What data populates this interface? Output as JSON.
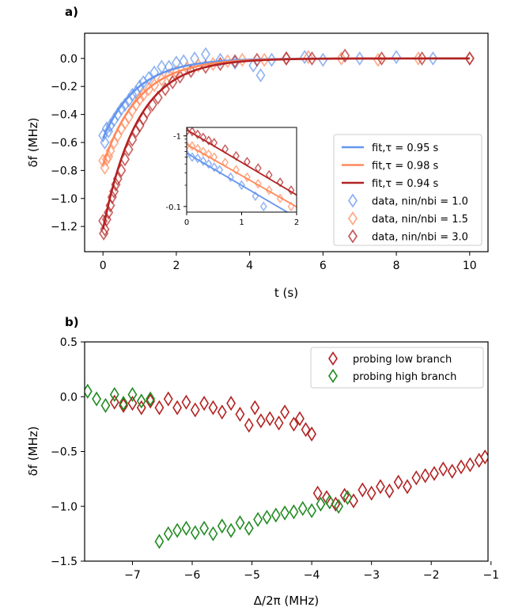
{
  "colors": {
    "blue": "#6495ed",
    "orange": "#ff8a5c",
    "darkred": "#b22222",
    "red": "#b22222",
    "green": "#228b22"
  },
  "chart_data": [
    {
      "panel_label": "a)",
      "type": "scatter",
      "xlabel": "t (s)",
      "ylabel": "δf (MHz)",
      "xlim": [
        -0.5,
        10.5
      ],
      "ylim": [
        -1.38,
        0.18
      ],
      "xticks": [
        0,
        2,
        4,
        6,
        8,
        10
      ],
      "yticks": [
        0.0,
        -0.2,
        -0.4,
        -0.6,
        -0.8,
        -1.0,
        -1.2
      ],
      "xtick_labels": [
        "0",
        "2",
        "4",
        "6",
        "8",
        "10"
      ],
      "ytick_labels": [
        "0.0",
        "−0.2",
        "−0.4",
        "−0.6",
        "−0.8",
        "−1.0",
        "−1.2"
      ],
      "legend_position": "center-right",
      "legend": [
        {
          "label": "fit,τ = 0.95 s",
          "type": "line",
          "color": "blue"
        },
        {
          "label": "fit,τ = 0.98 s",
          "type": "line",
          "color": "orange"
        },
        {
          "label": "fit,τ = 0.94 s",
          "type": "line",
          "color": "darkred"
        },
        {
          "label": "data, nin/nbi = 1.0",
          "type": "marker",
          "color": "blue"
        },
        {
          "label": "data, nin/nbi = 1.5",
          "type": "marker",
          "color": "orange"
        },
        {
          "label": "data, nin/nbi = 3.0",
          "type": "marker",
          "color": "darkred"
        }
      ],
      "fits": [
        {
          "tau": 0.95,
          "A": -0.57,
          "color": "blue"
        },
        {
          "tau": 0.98,
          "A": -0.76,
          "color": "orange"
        },
        {
          "tau": 0.94,
          "A": -1.22,
          "color": "darkred"
        }
      ],
      "series": [
        {
          "color": "blue",
          "points": [
            [
              0.0,
              -0.55
            ],
            [
              0.05,
              -0.6
            ],
            [
              0.1,
              -0.5
            ],
            [
              0.15,
              -0.52
            ],
            [
              0.2,
              -0.48
            ],
            [
              0.3,
              -0.44
            ],
            [
              0.4,
              -0.4
            ],
            [
              0.5,
              -0.36
            ],
            [
              0.6,
              -0.33
            ],
            [
              0.7,
              -0.3
            ],
            [
              0.8,
              -0.26
            ],
            [
              0.9,
              -0.24
            ],
            [
              1.0,
              -0.2
            ],
            [
              1.1,
              -0.17
            ],
            [
              1.25,
              -0.14
            ],
            [
              1.4,
              -0.1
            ],
            [
              1.6,
              -0.06
            ],
            [
              1.8,
              -0.06
            ],
            [
              2.0,
              -0.03
            ],
            [
              2.2,
              -0.02
            ],
            [
              2.5,
              0.0
            ],
            [
              2.8,
              0.03
            ],
            [
              3.2,
              -0.01
            ],
            [
              3.6,
              -0.03
            ],
            [
              4.1,
              -0.05
            ],
            [
              4.3,
              -0.12
            ],
            [
              4.6,
              -0.01
            ],
            [
              5.0,
              0.0
            ],
            [
              5.5,
              0.01
            ],
            [
              6.0,
              -0.01
            ],
            [
              7.0,
              0.0
            ],
            [
              8.0,
              0.01
            ],
            [
              9.0,
              0.0
            ],
            [
              10.0,
              0.0
            ]
          ]
        },
        {
          "color": "orange",
          "points": [
            [
              0.0,
              -0.73
            ],
            [
              0.05,
              -0.78
            ],
            [
              0.1,
              -0.72
            ],
            [
              0.15,
              -0.7
            ],
            [
              0.2,
              -0.66
            ],
            [
              0.3,
              -0.6
            ],
            [
              0.4,
              -0.55
            ],
            [
              0.5,
              -0.5
            ],
            [
              0.6,
              -0.46
            ],
            [
              0.7,
              -0.42
            ],
            [
              0.8,
              -0.37
            ],
            [
              0.9,
              -0.33
            ],
            [
              1.0,
              -0.29
            ],
            [
              1.1,
              -0.26
            ],
            [
              1.25,
              -0.22
            ],
            [
              1.4,
              -0.19
            ],
            [
              1.6,
              -0.15
            ],
            [
              1.8,
              -0.12
            ],
            [
              2.0,
              -0.1
            ],
            [
              2.3,
              -0.07
            ],
            [
              2.6,
              -0.05
            ],
            [
              3.0,
              -0.04
            ],
            [
              3.4,
              -0.02
            ],
            [
              3.8,
              -0.01
            ],
            [
              4.4,
              -0.01
            ],
            [
              5.0,
              0.0
            ],
            [
              5.6,
              0.01
            ],
            [
              6.5,
              0.0
            ],
            [
              7.5,
              -0.01
            ],
            [
              8.6,
              0.0
            ],
            [
              10.0,
              0.0
            ]
          ]
        },
        {
          "color": "darkred",
          "points": [
            [
              0.0,
              -1.16
            ],
            [
              0.02,
              -1.25
            ],
            [
              0.05,
              -1.22
            ],
            [
              0.1,
              -1.15
            ],
            [
              0.15,
              -1.1
            ],
            [
              0.2,
              -1.05
            ],
            [
              0.25,
              -0.99
            ],
            [
              0.3,
              -0.95
            ],
            [
              0.35,
              -0.9
            ],
            [
              0.4,
              -0.86
            ],
            [
              0.5,
              -0.8
            ],
            [
              0.6,
              -0.72
            ],
            [
              0.7,
              -0.65
            ],
            [
              0.8,
              -0.58
            ],
            [
              0.9,
              -0.52
            ],
            [
              1.0,
              -0.48
            ],
            [
              1.1,
              -0.43
            ],
            [
              1.2,
              -0.38
            ],
            [
              1.35,
              -0.33
            ],
            [
              1.5,
              -0.28
            ],
            [
              1.7,
              -0.22
            ],
            [
              1.9,
              -0.17
            ],
            [
              2.1,
              -0.13
            ],
            [
              2.4,
              -0.09
            ],
            [
              2.8,
              -0.06
            ],
            [
              3.2,
              -0.04
            ],
            [
              3.6,
              -0.02
            ],
            [
              4.2,
              -0.01
            ],
            [
              5.0,
              0.0
            ],
            [
              5.7,
              0.0
            ],
            [
              6.6,
              0.02
            ],
            [
              7.6,
              0.0
            ],
            [
              8.7,
              0.0
            ],
            [
              10.0,
              0.0
            ]
          ]
        }
      ]
    },
    {
      "panel_label": "",
      "type": "scatter",
      "inset": true,
      "xlim": [
        0,
        2
      ],
      "ylog_range": [
        -1.08,
        0.12
      ],
      "xticks": [
        0,
        1,
        2
      ],
      "xtick_labels": [
        "0",
        "1",
        "2"
      ],
      "ytick_labels": [
        "-0.1",
        "-1"
      ],
      "ytick_values": [
        -0.1,
        -1
      ],
      "series": [
        {
          "color": "blue",
          "points": [
            [
              0.0,
              -0.55
            ],
            [
              0.1,
              -0.5
            ],
            [
              0.2,
              -0.48
            ],
            [
              0.3,
              -0.44
            ],
            [
              0.4,
              -0.4
            ],
            [
              0.5,
              -0.36
            ],
            [
              0.6,
              -0.33
            ],
            [
              0.8,
              -0.26
            ],
            [
              1.0,
              -0.2
            ],
            [
              1.25,
              -0.14
            ],
            [
              1.4,
              -0.1
            ],
            [
              1.6,
              -0.07
            ],
            [
              1.8,
              -0.06
            ]
          ]
        },
        {
          "color": "orange",
          "points": [
            [
              0.0,
              -0.73
            ],
            [
              0.1,
              -0.72
            ],
            [
              0.2,
              -0.66
            ],
            [
              0.3,
              -0.6
            ],
            [
              0.4,
              -0.55
            ],
            [
              0.5,
              -0.5
            ],
            [
              0.7,
              -0.42
            ],
            [
              0.9,
              -0.33
            ],
            [
              1.1,
              -0.26
            ],
            [
              1.3,
              -0.21
            ],
            [
              1.5,
              -0.17
            ],
            [
              1.7,
              -0.13
            ],
            [
              1.9,
              -0.1
            ]
          ]
        },
        {
          "color": "darkred",
          "points": [
            [
              0.0,
              -1.16
            ],
            [
              0.1,
              -1.15
            ],
            [
              0.2,
              -1.05
            ],
            [
              0.3,
              -0.95
            ],
            [
              0.4,
              -0.86
            ],
            [
              0.5,
              -0.8
            ],
            [
              0.7,
              -0.65
            ],
            [
              0.9,
              -0.52
            ],
            [
              1.1,
              -0.43
            ],
            [
              1.3,
              -0.35
            ],
            [
              1.5,
              -0.28
            ],
            [
              1.7,
              -0.22
            ],
            [
              1.9,
              -0.17
            ]
          ]
        }
      ]
    },
    {
      "panel_label": "b)",
      "type": "scatter",
      "xlabel": "Δ/2π (MHz)",
      "ylabel": "δf (MHz)",
      "xlim": [
        -7.8,
        -1.05
      ],
      "ylim": [
        -1.5,
        0.5
      ],
      "xticks": [
        -7,
        -6,
        -5,
        -4,
        -3,
        -2,
        -1
      ],
      "yticks": [
        0.5,
        0.0,
        -0.5,
        -1.0,
        -1.5
      ],
      "xtick_labels": [
        "−7",
        "−6",
        "−5",
        "−4",
        "−3",
        "−2",
        "−1"
      ],
      "ytick_labels": [
        "0.5",
        "0.0",
        "−0.5",
        "−1.0",
        "−1.5"
      ],
      "legend_position": "top-right",
      "legend": [
        {
          "label": "probing low branch",
          "color": "red"
        },
        {
          "label": "probing high branch",
          "color": "green"
        }
      ],
      "series": [
        {
          "name": "probing low branch",
          "color": "red",
          "points": [
            [
              -7.3,
              -0.05
            ],
            [
              -7.15,
              -0.08
            ],
            [
              -7.0,
              -0.06
            ],
            [
              -6.85,
              -0.1
            ],
            [
              -6.7,
              -0.04
            ],
            [
              -6.55,
              -0.1
            ],
            [
              -6.4,
              -0.02
            ],
            [
              -6.25,
              -0.1
            ],
            [
              -6.1,
              -0.05
            ],
            [
              -5.95,
              -0.12
            ],
            [
              -5.8,
              -0.06
            ],
            [
              -5.65,
              -0.1
            ],
            [
              -5.5,
              -0.14
            ],
            [
              -5.35,
              -0.06
            ],
            [
              -5.2,
              -0.16
            ],
            [
              -5.05,
              -0.26
            ],
            [
              -4.95,
              -0.1
            ],
            [
              -4.85,
              -0.22
            ],
            [
              -4.7,
              -0.2
            ],
            [
              -4.55,
              -0.24
            ],
            [
              -4.45,
              -0.14
            ],
            [
              -4.3,
              -0.25
            ],
            [
              -4.2,
              -0.2
            ],
            [
              -4.1,
              -0.3
            ],
            [
              -4.0,
              -0.34
            ],
            [
              -3.9,
              -0.88
            ],
            [
              -3.75,
              -0.92
            ],
            [
              -3.6,
              -0.98
            ],
            [
              -3.45,
              -0.9
            ],
            [
              -3.3,
              -0.95
            ],
            [
              -3.15,
              -0.85
            ],
            [
              -3.0,
              -0.88
            ],
            [
              -2.85,
              -0.82
            ],
            [
              -2.7,
              -0.86
            ],
            [
              -2.55,
              -0.78
            ],
            [
              -2.4,
              -0.82
            ],
            [
              -2.25,
              -0.74
            ],
            [
              -2.1,
              -0.72
            ],
            [
              -1.95,
              -0.7
            ],
            [
              -1.8,
              -0.66
            ],
            [
              -1.65,
              -0.68
            ],
            [
              -1.5,
              -0.64
            ],
            [
              -1.35,
              -0.62
            ],
            [
              -1.2,
              -0.58
            ],
            [
              -1.1,
              -0.55
            ]
          ]
        },
        {
          "name": "probing high branch",
          "color": "green",
          "points": [
            [
              -7.75,
              0.05
            ],
            [
              -7.6,
              -0.02
            ],
            [
              -7.45,
              -0.08
            ],
            [
              -7.3,
              0.02
            ],
            [
              -7.15,
              -0.06
            ],
            [
              -7.0,
              0.02
            ],
            [
              -6.85,
              -0.04
            ],
            [
              -6.7,
              -0.02
            ],
            [
              -6.55,
              -1.32
            ],
            [
              -6.4,
              -1.25
            ],
            [
              -6.25,
              -1.22
            ],
            [
              -6.1,
              -1.2
            ],
            [
              -5.95,
              -1.24
            ],
            [
              -5.8,
              -1.2
            ],
            [
              -5.65,
              -1.25
            ],
            [
              -5.5,
              -1.18
            ],
            [
              -5.35,
              -1.22
            ],
            [
              -5.2,
              -1.15
            ],
            [
              -5.05,
              -1.2
            ],
            [
              -4.9,
              -1.12
            ],
            [
              -4.75,
              -1.1
            ],
            [
              -4.6,
              -1.08
            ],
            [
              -4.45,
              -1.06
            ],
            [
              -4.3,
              -1.05
            ],
            [
              -4.15,
              -1.02
            ],
            [
              -4.0,
              -1.04
            ],
            [
              -3.85,
              -0.98
            ],
            [
              -3.7,
              -0.96
            ],
            [
              -3.55,
              -1.0
            ],
            [
              -3.4,
              -0.92
            ]
          ]
        }
      ]
    }
  ]
}
